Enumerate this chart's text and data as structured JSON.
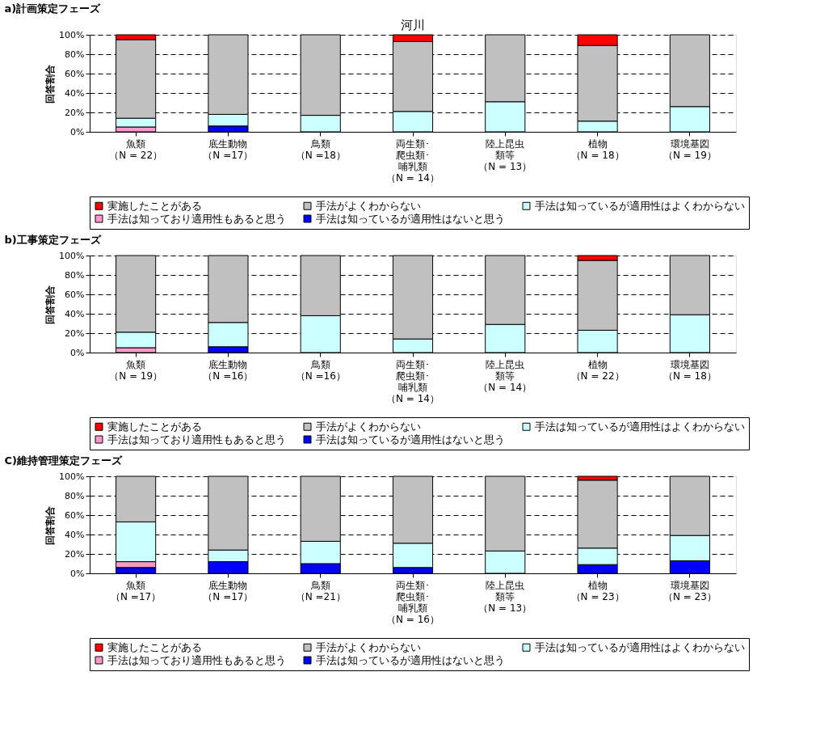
{
  "chart_data": [
    {
      "type": "bar",
      "title": "a)計画策定フェーズ",
      "annotations": [
        "河川"
      ],
      "ylabel": "回答割合",
      "stacked": true,
      "legend": "bottom",
      "grid": "y",
      "ylim": [
        0,
        100
      ],
      "yticks": [
        {
          "value": 0,
          "label": "0%"
        },
        {
          "value": 20,
          "label": "20%"
        },
        {
          "value": 40,
          "label": "40%"
        },
        {
          "value": 60,
          "label": "60%"
        },
        {
          "value": 80,
          "label": "80%"
        },
        {
          "value": 100,
          "label": "100%"
        }
      ],
      "categories": [
        "魚類（N = 22）",
        "底生動物（N =17）",
        "鳥類（N =18）",
        "両生類･爬虫類･哺乳類（N = 14）",
        "陸上昆虫類等（N = 13）",
        "植物（N = 18）",
        "環境基図（N = 19）"
      ],
      "series": [
        {
          "name": "手法は知っているが適用性はないと思う",
          "color": "#0000ff",
          "values": [
            null,
            6,
            null,
            null,
            null,
            null,
            null
          ]
        },
        {
          "name": "手法は知っており適用性もあると思う",
          "color": "#ff99cc",
          "values": [
            5,
            null,
            null,
            null,
            null,
            null,
            null
          ]
        },
        {
          "name": "手法は知っているが適用性はよくわからない",
          "color": "#ccffff",
          "values": [
            9,
            12,
            17,
            21,
            31,
            11,
            26
          ]
        },
        {
          "name": "手法がよくわからない",
          "color": "#c0c0c0",
          "values": [
            81,
            82,
            83,
            72,
            69,
            78,
            74
          ]
        },
        {
          "name": "実施したことがある",
          "color": "#ff0000",
          "values": [
            5,
            null,
            null,
            7,
            null,
            11,
            null
          ]
        }
      ]
    },
    {
      "type": "bar",
      "title": "b)工事策定フェーズ",
      "ylabel": "回答割合",
      "stacked": true,
      "legend": "bottom",
      "grid": "y",
      "ylim": [
        0,
        100
      ],
      "yticks": [
        {
          "value": 0,
          "label": "0%"
        },
        {
          "value": 20,
          "label": "20%"
        },
        {
          "value": 40,
          "label": "40%"
        },
        {
          "value": 60,
          "label": "60%"
        },
        {
          "value": 80,
          "label": "80%"
        },
        {
          "value": 100,
          "label": "100%"
        }
      ],
      "categories": [
        "魚類（N = 19）",
        "底生動物（N =16）",
        "鳥類（N =16）",
        "両生類･爬虫類･哺乳類（N = 14）",
        "陸上昆虫類等（N = 14）",
        "植物（N = 22）",
        "環境基図（N = 18）"
      ],
      "series": [
        {
          "name": "手法は知っているが適用性はないと思う",
          "color": "#0000ff",
          "values": [
            null,
            6,
            null,
            null,
            null,
            null,
            null
          ]
        },
        {
          "name": "手法は知っており適用性もあると思う",
          "color": "#ff99cc",
          "values": [
            5,
            null,
            null,
            null,
            null,
            null,
            null
          ]
        },
        {
          "name": "手法は知っているが適用性はよくわからない",
          "color": "#ccffff",
          "values": [
            16,
            25,
            38,
            14,
            29,
            23,
            39
          ]
        },
        {
          "name": "手法がよくわからない",
          "color": "#c0c0c0",
          "values": [
            79,
            69,
            62,
            86,
            71,
            72,
            61
          ]
        },
        {
          "name": "実施したことがある",
          "color": "#ff0000",
          "values": [
            null,
            null,
            null,
            null,
            null,
            5,
            null
          ]
        }
      ]
    },
    {
      "type": "bar",
      "title": "C)維持管理策定フェーズ",
      "ylabel": "回答割合",
      "stacked": true,
      "legend": "bottom",
      "grid": "y",
      "ylim": [
        0,
        100
      ],
      "yticks": [
        {
          "value": 0,
          "label": "0%"
        },
        {
          "value": 20,
          "label": "20%"
        },
        {
          "value": 40,
          "label": "40%"
        },
        {
          "value": 60,
          "label": "60%"
        },
        {
          "value": 80,
          "label": "80%"
        },
        {
          "value": 100,
          "label": "100%"
        }
      ],
      "categories": [
        "魚類（N =17）",
        "底生動物（N =17）",
        "鳥類（N =21）",
        "両生類･爬虫類･哺乳類（N = 16）",
        "陸上昆虫類等（N = 13）",
        "植物（N = 23）",
        "環境基図（N = 23）"
      ],
      "series": [
        {
          "name": "手法は知っているが適用性はないと思う",
          "color": "#0000ff",
          "values": [
            6,
            12,
            10,
            6,
            null,
            9,
            13
          ]
        },
        {
          "name": "手法は知っており適用性もあると思う",
          "color": "#ff99cc",
          "values": [
            6,
            null,
            null,
            null,
            null,
            null,
            null
          ]
        },
        {
          "name": "手法は知っているが適用性はよくわからない",
          "color": "#ccffff",
          "values": [
            41,
            12,
            23,
            25,
            23,
            17,
            26
          ]
        },
        {
          "name": "手法がよくわからない",
          "color": "#c0c0c0",
          "values": [
            47,
            76,
            67,
            69,
            77,
            70,
            61
          ]
        },
        {
          "name": "実施したことがある",
          "color": "#ff0000",
          "values": [
            null,
            null,
            null,
            null,
            null,
            4,
            null
          ]
        }
      ]
    }
  ]
}
